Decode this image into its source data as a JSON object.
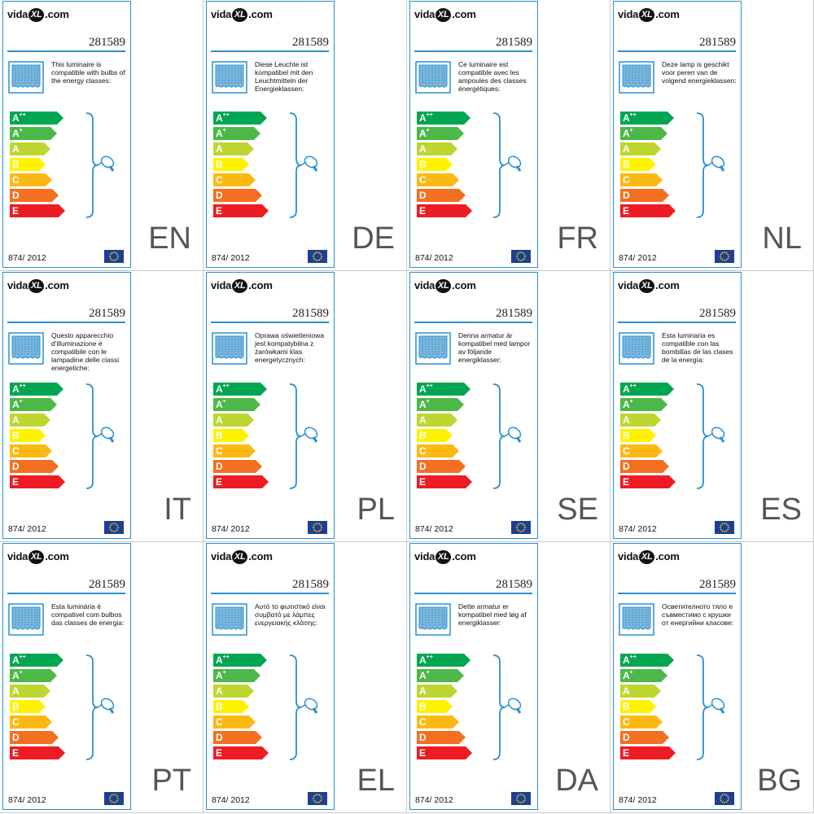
{
  "colors": {
    "accent": "#2a8fd0",
    "class_A++": "#00a651",
    "class_A+": "#4cb848",
    "class_A": "#bed630",
    "class_B": "#fff200",
    "class_C": "#fdb913",
    "class_D": "#f37021",
    "class_E": "#ed1c24"
  },
  "classes": [
    {
      "letter": "A",
      "sup": "++",
      "color": "#00a651"
    },
    {
      "letter": "A",
      "sup": "+",
      "color": "#4cb848"
    },
    {
      "letter": "A",
      "sup": "",
      "color": "#bed630"
    },
    {
      "letter": "B",
      "sup": "",
      "color": "#fff200"
    },
    {
      "letter": "C",
      "sup": "",
      "color": "#fdb913"
    },
    {
      "letter": "D",
      "sup": "",
      "color": "#f37021"
    },
    {
      "letter": "E",
      "sup": "",
      "color": "#ed1c24"
    }
  ],
  "labels": [
    {
      "lang": "EN",
      "logo_left": "vida",
      "logo_mark": "XL",
      "logo_right": ".com",
      "product": "281589",
      "regulation": "874/ 2012",
      "text": "This luminaire is compatible with bulbs of the energy classes:"
    },
    {
      "lang": "DE",
      "logo_left": "vida",
      "logo_mark": "XL",
      "logo_right": ".com",
      "product": "281589",
      "regulation": "874/ 2012",
      "text": "Diese Leuchte ist kompatibel mit den Leuchtmitteln der Energieklassen:"
    },
    {
      "lang": "FR",
      "logo_left": "vida",
      "logo_mark": "XL",
      "logo_right": ".com",
      "product": "281589",
      "regulation": "874/ 2012",
      "text": "Ce luminaire est compatible avec les ampoules des classes énergétiques:"
    },
    {
      "lang": "NL",
      "logo_left": "vida",
      "logo_mark": "XL",
      "logo_right": ".com",
      "product": "281589",
      "regulation": "874/ 2012",
      "text": "Deze lamp is geschikt voor peren van de volgend energieklassen:"
    },
    {
      "lang": "IT",
      "logo_left": "vida",
      "logo_mark": "XL",
      "logo_right": ".com",
      "product": "281589",
      "regulation": "874/ 2012",
      "text": "Questo apparecchio d'illuminazione è compatibile con le lampadine delle classi energetiche:"
    },
    {
      "lang": "PL",
      "logo_left": "vida",
      "logo_mark": "XL",
      "logo_right": ".com",
      "product": "281589",
      "regulation": "874/ 2012",
      "text": "Oprawa oświetleniowa jest kompatybilna z żarówkami klas energetycznych:"
    },
    {
      "lang": "SE",
      "logo_left": "vida",
      "logo_mark": "XL",
      "logo_right": ".com",
      "product": "281589",
      "regulation": "874/ 2012",
      "text": "Denna armatur är kompatibel med lampor av följande energiklasser:"
    },
    {
      "lang": "ES",
      "logo_left": "vida",
      "logo_mark": "XL",
      "logo_right": ".com",
      "product": "281589",
      "regulation": "874/ 2012",
      "text": "Esta luminaria es compatible con las bombillas de las clases de la energía:"
    },
    {
      "lang": "PT",
      "logo_left": "vida",
      "logo_mark": "XL",
      "logo_right": ".com",
      "product": "281589",
      "regulation": "874/ 2012",
      "text": "Esta luminária é compativel com bulbos das classes de energia:"
    },
    {
      "lang": "EL",
      "logo_left": "vida",
      "logo_mark": "XL",
      "logo_right": ".com",
      "product": "281589",
      "regulation": "874/ 2012",
      "text": "Αυτό το φωτιστικό είναι συμβατό με λάμπες ενεργειακής κλάσης:"
    },
    {
      "lang": "DA",
      "logo_left": "vida",
      "logo_mark": "XL",
      "logo_right": ".com",
      "product": "281589",
      "regulation": "874/ 2012",
      "text": "Dette armatur er kompatibel med løg af energiklasser:"
    },
    {
      "lang": "BG",
      "logo_left": "vida",
      "logo_mark": "XL",
      "logo_right": ".com",
      "product": "281589",
      "regulation": "874/ 2012",
      "text": "Осветителното тяло е съвместимо с крушки от енергийни класове:"
    }
  ]
}
